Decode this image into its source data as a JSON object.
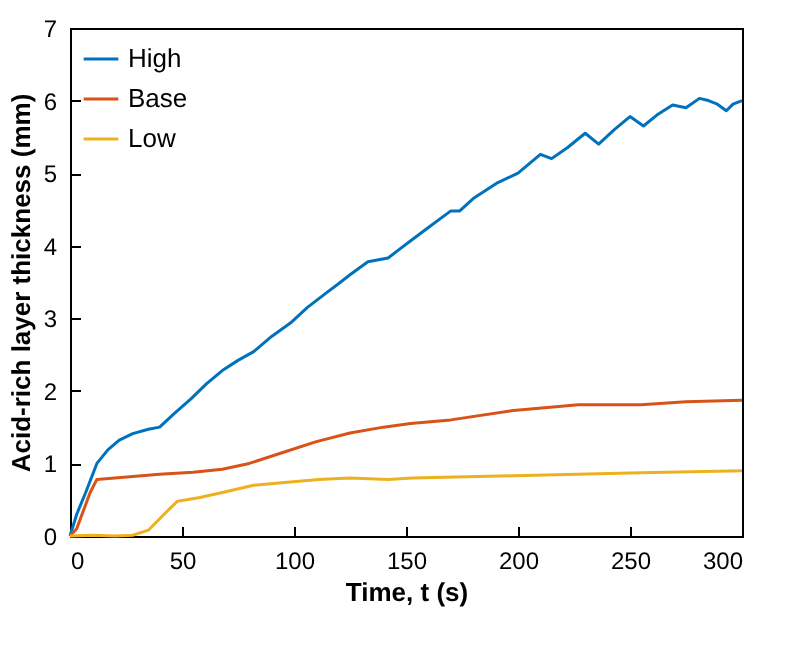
{
  "chart_data": {
    "type": "line",
    "xlabel": "Time, t (s)",
    "ylabel": "Acid-rich layer thickness (mm)",
    "xlim": [
      0,
      300
    ],
    "ylim": [
      0,
      7
    ],
    "xticks": [
      0,
      50,
      100,
      150,
      200,
      250,
      300
    ],
    "yticks": [
      0,
      1,
      2,
      3,
      4,
      5,
      6,
      7
    ],
    "grid": false,
    "legend": "top left",
    "line_style": "solid",
    "marker": "none",
    "series": [
      {
        "name": "High",
        "color": "#0072bd",
        "x": [
          0,
          3,
          7,
          12,
          17,
          22,
          28,
          35,
          40,
          47,
          54,
          61,
          68,
          75,
          82,
          90,
          99,
          106,
          114,
          120,
          125,
          133,
          142,
          147,
          153,
          160,
          170,
          174,
          180,
          191,
          200,
          210,
          215,
          222,
          230,
          236,
          243,
          250,
          256,
          262,
          269,
          275,
          281,
          285,
          289,
          293,
          296,
          300
        ],
        "values": [
          0,
          0.3,
          0.6,
          1.0,
          1.19,
          1.32,
          1.41,
          1.47,
          1.5,
          1.7,
          1.89,
          2.1,
          2.28,
          2.42,
          2.54,
          2.75,
          2.95,
          3.15,
          3.34,
          3.48,
          3.6,
          3.78,
          3.83,
          3.95,
          4.09,
          4.25,
          4.48,
          4.48,
          4.65,
          4.87,
          5.0,
          5.26,
          5.2,
          5.35,
          5.55,
          5.4,
          5.6,
          5.78,
          5.65,
          5.8,
          5.94,
          5.9,
          6.03,
          6.0,
          5.95,
          5.86,
          5.95,
          6.0
        ]
      },
      {
        "name": "Base",
        "color": "#d95319",
        "x": [
          0,
          3,
          6,
          9,
          12,
          20,
          40,
          55,
          68,
          80,
          95,
          110,
          125,
          140,
          152,
          170,
          198,
          227,
          255,
          275,
          300
        ],
        "values": [
          0,
          0.1,
          0.35,
          0.6,
          0.78,
          0.8,
          0.85,
          0.88,
          0.92,
          1.0,
          1.15,
          1.3,
          1.42,
          1.5,
          1.55,
          1.6,
          1.73,
          1.81,
          1.81,
          1.85,
          1.87
        ]
      },
      {
        "name": "Low",
        "color": "#edb120",
        "x": [
          0,
          10,
          20,
          28,
          35,
          42,
          48,
          58,
          68,
          82,
          97,
          111,
          125,
          142,
          153,
          198,
          255,
          300
        ],
        "values": [
          0,
          0.01,
          0,
          0.01,
          0.08,
          0.3,
          0.48,
          0.53,
          0.6,
          0.7,
          0.74,
          0.78,
          0.8,
          0.78,
          0.8,
          0.83,
          0.87,
          0.9
        ]
      }
    ]
  }
}
